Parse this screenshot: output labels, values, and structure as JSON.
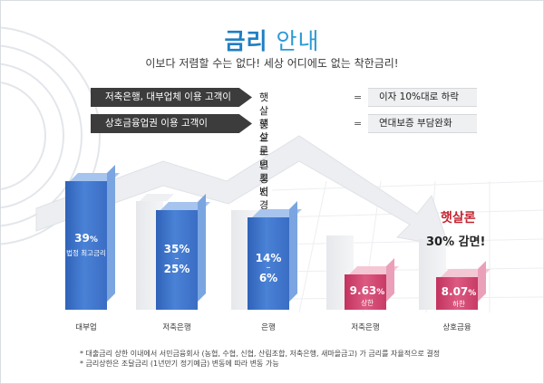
{
  "title": {
    "bold": "금리",
    "light": "안내"
  },
  "subtitle": "이보다 저렴할 수는 없다! 세상 어디에도 없는 착한금리!",
  "rules": [
    {
      "condition": "저축은행, 대부업체 이용 고객이",
      "action": "햇살론으로 변경시",
      "eq": "=",
      "result": "이자 10%대로 하락"
    },
    {
      "condition": "상호금융업권 이용 고객이",
      "action": "햇살론으로 변경시",
      "eq": "=",
      "result": "연대보증 부담완화"
    }
  ],
  "chart_data": {
    "type": "bar",
    "categories": [
      "대부업",
      "저축은행",
      "은행",
      "저축은행",
      "상호금융"
    ],
    "bars": [
      {
        "category": "대부업",
        "value_text": "39",
        "unit": "%",
        "sub": "법정 최고금리",
        "value": 39,
        "color": "blue"
      },
      {
        "category": "저축은행",
        "value_text": "35%",
        "unit": "",
        "range_low": "25%",
        "sub": "",
        "value": 35,
        "color": "blue"
      },
      {
        "category": "은행",
        "value_text": "14%",
        "unit": "",
        "range_low": "6%",
        "sub": "",
        "value": 14,
        "color": "blue"
      },
      {
        "category": "저축은행",
        "value_text": "9.63",
        "unit": "%",
        "sub": "상한",
        "value": 9.63,
        "color": "red"
      },
      {
        "category": "상호금융",
        "value_text": "8.07",
        "unit": "%",
        "sub": "하한",
        "value": 8.07,
        "color": "red"
      }
    ],
    "annotation_top": "햇살론",
    "annotation_bottom": "30% 감면!"
  },
  "notes": [
    "* 대출금리 상한 이내에서 서민금융회사 (농협, 수협, 신협, 산림조합, 저축은행, 새마을금고) 가 금리를 자율적으로 결정",
    "* 금리상한은 조달금리 (1년만기 정기예금) 변동에 따라 변동 가능"
  ],
  "colors": {
    "accent": "#1f7fc2",
    "blue_bar": "#3a6dc4",
    "red_bar": "#c83b66",
    "red_text": "#c5232f"
  }
}
